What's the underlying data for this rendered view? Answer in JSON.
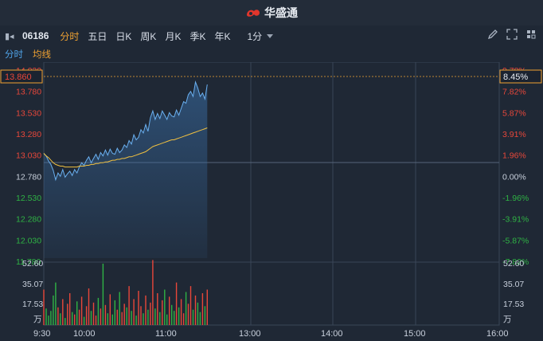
{
  "app": {
    "brand": "华盛通"
  },
  "toolbar": {
    "code": "06186",
    "periods": [
      "分时",
      "五日",
      "日K",
      "周K",
      "月K",
      "季K",
      "年K"
    ],
    "active_period": "分时",
    "minute_select": "1分",
    "icons": [
      "pen-icon",
      "fullscreen-icon",
      "settings-icon"
    ]
  },
  "subtabs": {
    "timeshare": "分时",
    "avg_line": "均线"
  },
  "price_axis": {
    "left_labels": [
      "14.030",
      "13.780",
      "13.530",
      "13.280",
      "13.030",
      "12.780",
      "12.530",
      "12.280",
      "12.030",
      "11.780"
    ],
    "right_labels": [
      "9.78%",
      "7.82%",
      "5.87%",
      "3.91%",
      "1.96%",
      "0.00%",
      "-1.96%",
      "-3.91%",
      "-5.87%",
      "-7.82%"
    ],
    "current_price": "13.860",
    "current_pct": "8.45%",
    "prev_close": 12.78
  },
  "volume_axis": {
    "labels": [
      "52.60",
      "35.07",
      "17.53"
    ],
    "unit": "万"
  },
  "time_axis": [
    "9:30",
    "10:00",
    "11:00",
    "13:00",
    "14:00",
    "15:00",
    "16:00"
  ],
  "colors": {
    "up": "#e8473a",
    "down": "#2fb344",
    "price_line": "#6ab0f0",
    "avg_line": "#f0c040",
    "accent": "#f0a232"
  },
  "chart_data": {
    "type": "line",
    "session": "9:30-12:00 (of 9:30-16:00)",
    "ylim": [
      11.78,
      14.03
    ],
    "series": [
      {
        "values": [
          13.05,
          13.02,
          12.96,
          12.92,
          12.85,
          12.74,
          12.82,
          12.78,
          12.86,
          12.77,
          12.81,
          12.84,
          12.79,
          12.86,
          12.82,
          12.89,
          12.94,
          12.91,
          12.97,
          13.01,
          12.94,
          12.99,
          13.04,
          12.98,
          13.06,
          13.02,
          13.09,
          13.03,
          13.1,
          13.05,
          13.04,
          13.11,
          13.06,
          13.09,
          13.15,
          13.12,
          13.2,
          13.16,
          13.27,
          13.21,
          13.24,
          13.33,
          13.29,
          13.39,
          13.31,
          13.47,
          13.55,
          13.45,
          13.52,
          13.46,
          13.55,
          13.5,
          13.45,
          13.53,
          13.49,
          13.48,
          13.56,
          13.5,
          13.58,
          13.66,
          13.64,
          13.74,
          13.78,
          13.72,
          13.89,
          13.82,
          13.72,
          13.76,
          13.69,
          13.86
        ]
      },
      {
        "values": [
          13.05,
          13.02,
          13.0,
          12.97,
          12.94,
          12.92,
          12.91,
          12.9,
          12.9,
          12.89,
          12.89,
          12.89,
          12.89,
          12.89,
          12.89,
          12.9,
          12.9,
          12.9,
          12.91,
          12.91,
          12.92,
          12.92,
          12.93,
          12.93,
          12.94,
          12.94,
          12.95,
          12.95,
          12.96,
          12.97,
          12.97,
          12.98,
          12.98,
          12.99,
          12.99,
          13.0,
          13.01,
          13.01,
          13.02,
          13.03,
          13.04,
          13.05,
          13.06,
          13.07,
          13.09,
          13.11,
          13.13,
          13.14,
          13.15,
          13.16,
          13.17,
          13.18,
          13.19,
          13.2,
          13.21,
          13.21,
          13.22,
          13.23,
          13.24,
          13.25,
          13.26,
          13.27,
          13.28,
          13.29,
          13.3,
          13.31,
          13.32,
          13.33,
          13.34,
          13.35
        ]
      }
    ],
    "volume": [
      30,
      14,
      8,
      12,
      25,
      36,
      15,
      10,
      22,
      6,
      18,
      27,
      11,
      9,
      20,
      13,
      24,
      7,
      16,
      31,
      12,
      19,
      8,
      23,
      14,
      52,
      17,
      10,
      26,
      9,
      21,
      13,
      28,
      11,
      18,
      15,
      33,
      12,
      22,
      8,
      29,
      16,
      10,
      25,
      13,
      19,
      55,
      14,
      27,
      11,
      21,
      30,
      9,
      24,
      17,
      12,
      36,
      15,
      22,
      10,
      28,
      18,
      33,
      13,
      25,
      19,
      11,
      27,
      16,
      30
    ],
    "volume_ylim": [
      0,
      52.6
    ]
  }
}
